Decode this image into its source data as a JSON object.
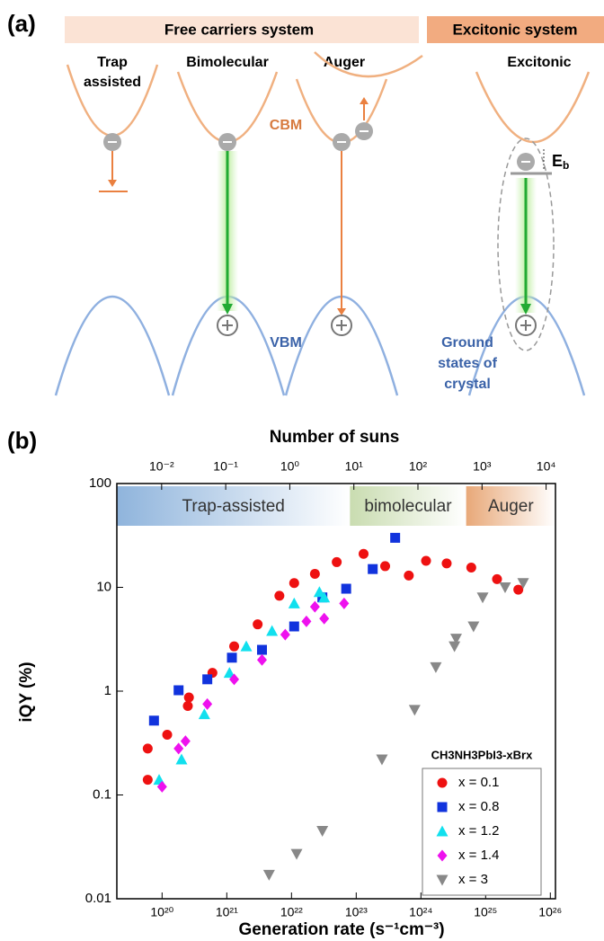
{
  "panel_a": {
    "label": "(a)",
    "headers": [
      "Free carriers system",
      "Excitonic system"
    ],
    "mechanisms": [
      [
        "Trap",
        "assisted"
      ],
      [
        "Bimolecular"
      ],
      [
        "Auger"
      ],
      [
        "Excitonic"
      ]
    ],
    "cbm": "CBM",
    "vbm": "VBM",
    "eb": [
      "E",
      "b"
    ],
    "ground_states": [
      "Ground",
      "states of",
      "crystal"
    ]
  },
  "panel_b_label": "(b)",
  "chart_data": {
    "type": "scatter",
    "xlabel": "Generation rate (s⁻¹cm⁻³)",
    "ylabel": "iQY (%)",
    "x2label": "Number of suns",
    "xscale": "log",
    "yscale": "log",
    "x2scale": "log",
    "xlim": [
      2e+19,
      1.2e+26
    ],
    "ylim": [
      0.01,
      100
    ],
    "x2lim": [
      0.002,
      14000
    ],
    "xticks": [
      {
        "value": 1e+20,
        "label": "10²⁰"
      },
      {
        "value": 1e+21,
        "label": "10²¹"
      },
      {
        "value": 1e+22,
        "label": "10²²"
      },
      {
        "value": 1e+23,
        "label": "10²³"
      },
      {
        "value": 1e+24,
        "label": "10²⁴"
      },
      {
        "value": 1e+25,
        "label": "10²⁵"
      },
      {
        "value": 1e+26,
        "label": "10²⁶"
      }
    ],
    "yticks": [
      0.01,
      0.1,
      1,
      10,
      100
    ],
    "x2ticks": [
      {
        "value": 0.01,
        "label": "10⁻²"
      },
      {
        "value": 0.1,
        "label": "10⁻¹"
      },
      {
        "value": 1,
        "label": "10⁰"
      },
      {
        "value": 10,
        "label": "10¹"
      },
      {
        "value": 100,
        "label": "10²"
      },
      {
        "value": 1000,
        "label": "10³"
      },
      {
        "value": 10000,
        "label": "10⁴"
      }
    ],
    "regions": [
      {
        "label": "Trap-assisted",
        "from": 2e+19,
        "to": 8e+22,
        "color": "#8fb4dc"
      },
      {
        "label": "bimolecular",
        "from": 8e+22,
        "to": 5e+24,
        "color": "#c9dcb0"
      },
      {
        "label": "Auger",
        "from": 5e+24,
        "to": 1.2e+26,
        "color": "#e8a878"
      }
    ],
    "legend_title": "CH3NH3PbI3-xBrx",
    "legend": "lower right",
    "series": [
      {
        "name": "x = 0.1",
        "color": "#ee1111",
        "marker": "circle",
        "x": [
          6e+19,
          6e+19,
          1.2e+20,
          2.5e+20,
          2.6e+20,
          6e+20,
          1.3e+21,
          3e+21,
          6.5e+21,
          1.1e+22,
          2.3e+22,
          5e+22,
          1.3e+23,
          2.8e+23,
          6.5e+23,
          1.2e+24,
          2.5e+24,
          6e+24,
          1.5e+25,
          3.2e+25
        ],
        "values": [
          0.28,
          0.14,
          0.38,
          0.72,
          0.87,
          1.5,
          2.7,
          4.4,
          8.3,
          11,
          13.5,
          17.5,
          21,
          16,
          13,
          18,
          17,
          15.5,
          12,
          9.5
        ]
      },
      {
        "name": "x = 0.8",
        "color": "#1133dd",
        "marker": "square",
        "x": [
          7.5e+19,
          1.8e+20,
          5e+20,
          1.2e+21,
          3.5e+21,
          1.1e+22,
          3e+22,
          7e+22,
          1.8e+23,
          4e+23
        ],
        "values": [
          0.52,
          1.02,
          1.3,
          2.1,
          2.5,
          4.2,
          8,
          9.7,
          15,
          30
        ]
      },
      {
        "name": "x = 1.2",
        "color": "#11e0ee",
        "marker": "triangle",
        "x": [
          9e+19,
          2e+20,
          4.5e+20,
          1.1e+21,
          2e+21,
          5e+21,
          1.1e+22,
          2.7e+22,
          3.2e+22
        ],
        "values": [
          0.14,
          0.22,
          0.6,
          1.5,
          2.7,
          3.8,
          7,
          9,
          8
        ]
      },
      {
        "name": "x = 1.4",
        "color": "#ee11ee",
        "marker": "diamond",
        "x": [
          1e+20,
          1.8e+20,
          2.3e+20,
          5e+20,
          1.3e+21,
          3.5e+21,
          8e+21,
          1.7e+22,
          2.3e+22,
          3.2e+22,
          6.5e+22
        ],
        "values": [
          0.12,
          0.28,
          0.33,
          0.75,
          1.3,
          2,
          3.5,
          4.7,
          6.5,
          5,
          7
        ]
      },
      {
        "name": "x = 3",
        "color": "#888888",
        "marker": "triangle-down",
        "x": [
          4.5e+21,
          1.2e+22,
          3e+22,
          2.5e+23,
          8e+23,
          1.7e+24,
          3.3e+24,
          3.5e+24,
          6.5e+24,
          9e+24,
          2e+25,
          3.8e+25
        ],
        "values": [
          0.017,
          0.027,
          0.045,
          0.22,
          0.66,
          1.7,
          2.7,
          3.2,
          4.2,
          8,
          10,
          11
        ]
      }
    ]
  }
}
